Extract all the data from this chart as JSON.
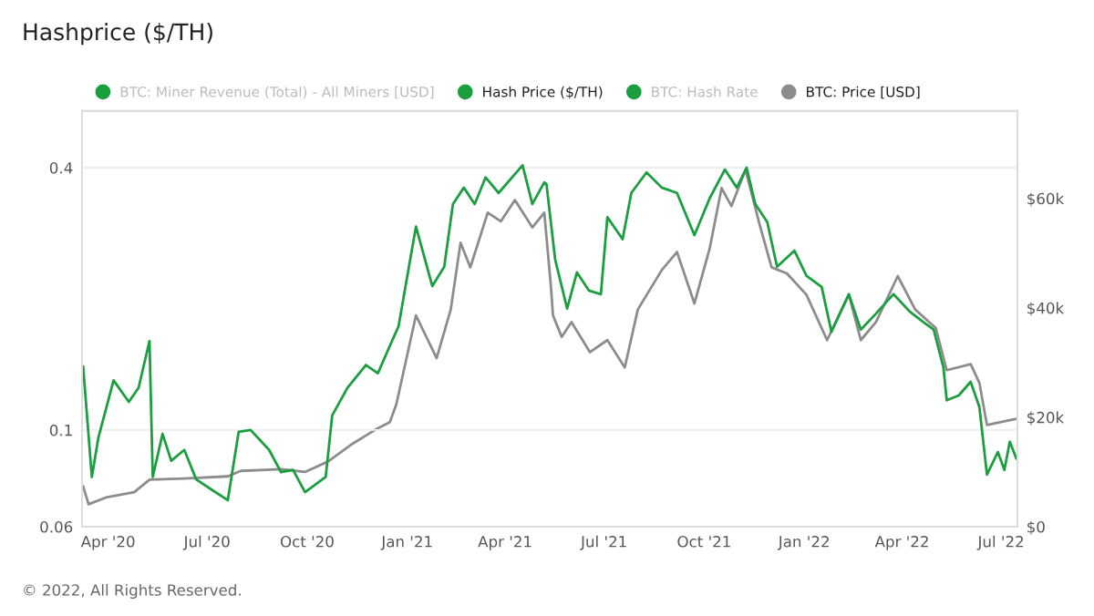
{
  "chart_data": {
    "type": "line",
    "title": "Hashprice ($/TH)",
    "annotations": [
      "© 2022, All Rights Reserved."
    ],
    "log": "y",
    "grid": "y",
    "legend": "top left",
    "xlim": [
      "2020-03-08",
      "2022-07-16"
    ],
    "xticks": [
      {
        "value": "2020-04-01",
        "label": "Apr '20"
      },
      {
        "value": "2020-07-01",
        "label": "Jul '20"
      },
      {
        "value": "2020-10-01",
        "label": "Oct '20"
      },
      {
        "value": "2021-01-01",
        "label": "Jan '21"
      },
      {
        "value": "2021-04-01",
        "label": "Apr '21"
      },
      {
        "value": "2021-07-01",
        "label": "Jul '21"
      },
      {
        "value": "2021-10-01",
        "label": "Oct '21"
      },
      {
        "value": "2022-01-01",
        "label": "Jan '22"
      },
      {
        "value": "2022-04-01",
        "label": "Apr '22"
      },
      {
        "value": "2022-07-01",
        "label": "Jul '22"
      }
    ],
    "ylim": [
      0.06,
      0.54
    ],
    "yticks": [
      0.06,
      0.1,
      0.4
    ],
    "y2lim": [
      0,
      76000
    ],
    "y2ticks": [
      {
        "value": 0,
        "label": "$0"
      },
      {
        "value": 20000,
        "label": "$20k"
      },
      {
        "value": 40000,
        "label": "$40k"
      },
      {
        "value": 60000,
        "label": "$60k"
      }
    ],
    "series": [
      {
        "name": "BTC: Miner Revenue (Total) - All Miners [USD]",
        "color": "#1a9e3f"
      },
      {
        "name": "Hash Price ($/TH)",
        "color": "#1a9e3f",
        "x": [
          "2020-03-09",
          "2020-03-17",
          "2020-03-23",
          "2020-04-06",
          "2020-04-20",
          "2020-04-29",
          "2020-05-09",
          "2020-05-12",
          "2020-05-21",
          "2020-05-29",
          "2020-06-10",
          "2020-06-21",
          "2020-07-05",
          "2020-07-20",
          "2020-07-30",
          "2020-08-10",
          "2020-08-27",
          "2020-09-07",
          "2020-09-18",
          "2020-09-29",
          "2020-10-18",
          "2020-10-24",
          "2020-11-07",
          "2020-11-24",
          "2020-12-05",
          "2020-12-16",
          "2020-12-24",
          "2021-01-09",
          "2021-01-24",
          "2021-02-04",
          "2021-02-12",
          "2021-02-22",
          "2021-03-04",
          "2021-03-14",
          "2021-03-26",
          "2021-04-17",
          "2021-04-26",
          "2021-05-07",
          "2021-05-09",
          "2021-05-17",
          "2021-05-28",
          "2021-06-06",
          "2021-06-17",
          "2021-06-28",
          "2021-07-04",
          "2021-07-18",
          "2021-07-26",
          "2021-08-09",
          "2021-08-23",
          "2021-09-06",
          "2021-09-22",
          "2021-10-06",
          "2021-10-20",
          "2021-10-31",
          "2021-11-09",
          "2021-11-17",
          "2021-11-28",
          "2021-12-07",
          "2021-12-23",
          "2022-01-03",
          "2022-01-17",
          "2022-01-26",
          "2022-02-11",
          "2022-02-22",
          "2022-03-08",
          "2022-03-24",
          "2022-04-08",
          "2022-04-19",
          "2022-04-30",
          "2022-05-09",
          "2022-05-12",
          "2022-05-23",
          "2022-06-03",
          "2022-06-11",
          "2022-06-18",
          "2022-06-28",
          "2022-07-04",
          "2022-07-09",
          "2022-07-15"
        ],
        "values": [
          0.14,
          0.078,
          0.096,
          0.13,
          0.116,
          0.125,
          0.16,
          0.078,
          0.098,
          0.085,
          0.09,
          0.077,
          0.073,
          0.069,
          0.099,
          0.1,
          0.09,
          0.08,
          0.081,
          0.072,
          0.078,
          0.108,
          0.125,
          0.141,
          0.135,
          0.156,
          0.173,
          0.293,
          0.214,
          0.237,
          0.33,
          0.36,
          0.33,
          0.38,
          0.35,
          0.405,
          0.33,
          0.37,
          0.367,
          0.246,
          0.19,
          0.23,
          0.209,
          0.205,
          0.308,
          0.274,
          0.35,
          0.39,
          0.36,
          0.35,
          0.28,
          0.34,
          0.396,
          0.36,
          0.4,
          0.33,
          0.3,
          0.237,
          0.258,
          0.226,
          0.213,
          0.168,
          0.205,
          0.17,
          0.185,
          0.205,
          0.187,
          0.178,
          0.17,
          0.139,
          0.117,
          0.12,
          0.129,
          0.113,
          0.079,
          0.089,
          0.081,
          0.094,
          0.086
        ]
      },
      {
        "name": "BTC: Hash Rate",
        "color": "#1a9e3f"
      },
      {
        "name": "BTC: Price [USD]",
        "color": "#8c8c8c",
        "axis": "y2",
        "x": [
          "2020-03-09",
          "2020-03-14",
          "2020-03-31",
          "2020-04-25",
          "2020-05-09",
          "2020-06-10",
          "2020-07-20",
          "2020-08-01",
          "2020-09-07",
          "2020-09-29",
          "2020-10-20",
          "2020-11-12",
          "2020-12-05",
          "2020-12-16",
          "2020-12-22",
          "2021-01-09",
          "2021-01-20",
          "2021-01-28",
          "2021-02-10",
          "2021-02-19",
          "2021-02-28",
          "2021-03-16",
          "2021-03-28",
          "2021-04-10",
          "2021-04-26",
          "2021-05-07",
          "2021-05-13",
          "2021-05-15",
          "2021-05-23",
          "2021-06-01",
          "2021-06-18",
          "2021-07-04",
          "2021-07-20",
          "2021-08-01",
          "2021-08-23",
          "2021-09-06",
          "2021-09-22",
          "2021-10-06",
          "2021-10-17",
          "2021-10-26",
          "2021-11-08",
          "2021-11-21",
          "2021-12-02",
          "2021-12-16",
          "2022-01-03",
          "2022-01-22",
          "2022-02-11",
          "2022-02-22",
          "2022-03-08",
          "2022-03-28",
          "2022-04-13",
          "2022-05-02",
          "2022-05-12",
          "2022-06-03",
          "2022-06-11",
          "2022-06-18",
          "2022-07-15"
        ],
        "values": [
          7400,
          4100,
          5400,
          6300,
          8600,
          8800,
          9200,
          10200,
          10500,
          10000,
          11900,
          15200,
          18000,
          19100,
          22400,
          38600,
          34100,
          30800,
          39700,
          51900,
          47400,
          57400,
          55800,
          59700,
          54700,
          57400,
          44100,
          38600,
          34700,
          37400,
          31900,
          34100,
          29100,
          39700,
          46900,
          50200,
          40800,
          50800,
          61900,
          58600,
          65200,
          55200,
          47400,
          46300,
          42400,
          34100,
          42400,
          34100,
          37400,
          45800,
          39700,
          36300,
          28600,
          29700,
          26300,
          18600,
          19700
        ]
      }
    ]
  }
}
